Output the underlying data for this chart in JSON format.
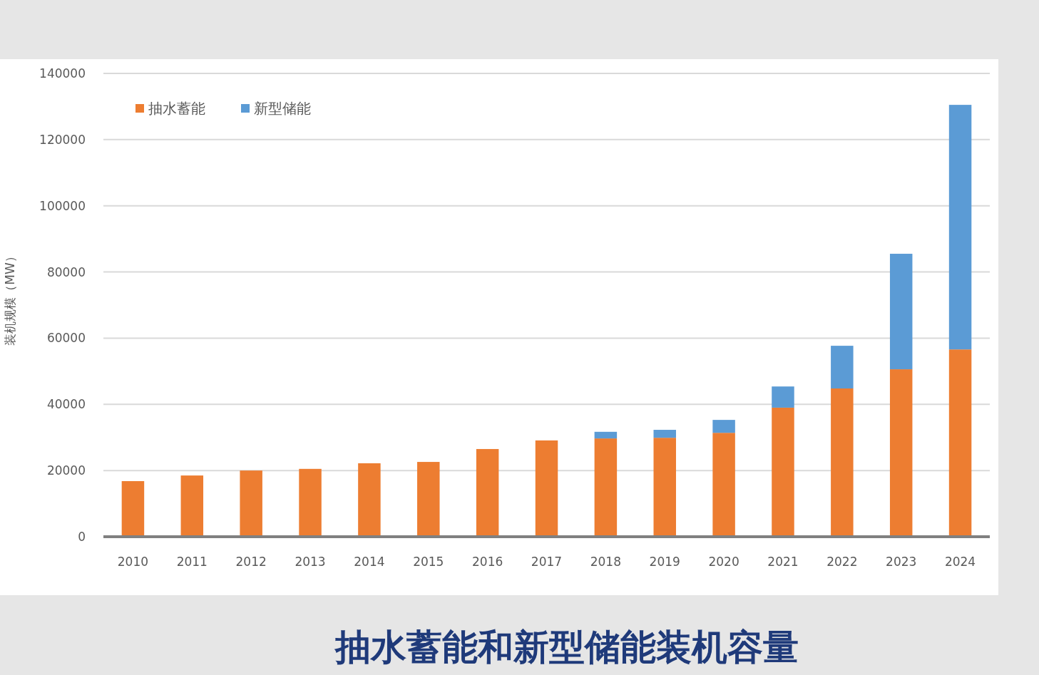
{
  "chart_data": {
    "type": "bar",
    "stacked": true,
    "title": "抽水蓄能和新型储能装机容量",
    "ylabel": "装机规模（MW）",
    "categories": [
      "2010",
      "2011",
      "2012",
      "2013",
      "2014",
      "2015",
      "2016",
      "2017",
      "2018",
      "2019",
      "2020",
      "2021",
      "2022",
      "2023",
      "2024"
    ],
    "series": [
      {
        "name": "抽水蓄能",
        "color": "#ed7d31",
        "values": [
          16800,
          18500,
          20000,
          20500,
          22200,
          22600,
          26500,
          29100,
          29700,
          29900,
          31400,
          39000,
          44800,
          50600,
          56600
        ]
      },
      {
        "name": "新型储能",
        "color": "#5b9bd5",
        "values": [
          0,
          0,
          0,
          0,
          0,
          0,
          0,
          0,
          2000,
          2400,
          3900,
          6400,
          12900,
          34900,
          73900
        ]
      }
    ],
    "ylim": [
      0,
      140000
    ],
    "yticks": [
      0,
      20000,
      40000,
      60000,
      80000,
      100000,
      120000,
      140000
    ],
    "grid": "y",
    "legend": "top left"
  }
}
